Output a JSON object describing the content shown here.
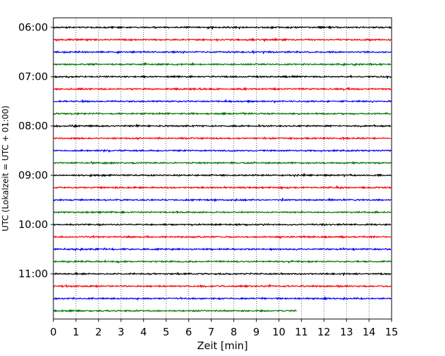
{
  "chart_data": {
    "type": "line",
    "subtype": "helicorder",
    "xlabel": "Zeit  [min]",
    "ylabel": "UTC (Lokalzeit = UTC + 01:00)",
    "xlim": [
      0,
      15
    ],
    "x_ticks": [
      "0",
      "1",
      "2",
      "3",
      "4",
      "5",
      "6",
      "7",
      "8",
      "9",
      "10",
      "11",
      "12",
      "13",
      "14",
      "15"
    ],
    "y_tick_labels": [
      "06:00",
      "07:00",
      "08:00",
      "09:00",
      "10:00",
      "11:00"
    ],
    "grid": "vertical dotted",
    "trace_interval_minutes": 15,
    "trace_colors": [
      "#000000",
      "#ff0000",
      "#0000ff",
      "#007700"
    ],
    "traces": [
      {
        "start": "06:00",
        "end_minute": 15
      },
      {
        "start": "06:15",
        "end_minute": 15
      },
      {
        "start": "06:30",
        "end_minute": 15
      },
      {
        "start": "06:45",
        "end_minute": 15
      },
      {
        "start": "07:00",
        "end_minute": 15
      },
      {
        "start": "07:15",
        "end_minute": 15
      },
      {
        "start": "07:30",
        "end_minute": 15
      },
      {
        "start": "07:45",
        "end_minute": 15
      },
      {
        "start": "08:00",
        "end_minute": 15
      },
      {
        "start": "08:15",
        "end_minute": 15
      },
      {
        "start": "08:30",
        "end_minute": 15
      },
      {
        "start": "08:45",
        "end_minute": 15
      },
      {
        "start": "09:00",
        "end_minute": 15
      },
      {
        "start": "09:15",
        "end_minute": 15
      },
      {
        "start": "09:30",
        "end_minute": 15
      },
      {
        "start": "09:45",
        "end_minute": 15
      },
      {
        "start": "10:00",
        "end_minute": 15
      },
      {
        "start": "10:15",
        "end_minute": 15
      },
      {
        "start": "10:30",
        "end_minute": 15
      },
      {
        "start": "10:45",
        "end_minute": 15
      },
      {
        "start": "11:00",
        "end_minute": 15
      },
      {
        "start": "11:15",
        "end_minute": 15
      },
      {
        "start": "11:30",
        "end_minute": 15
      },
      {
        "start": "11:45",
        "end_minute": 10.8
      }
    ]
  }
}
